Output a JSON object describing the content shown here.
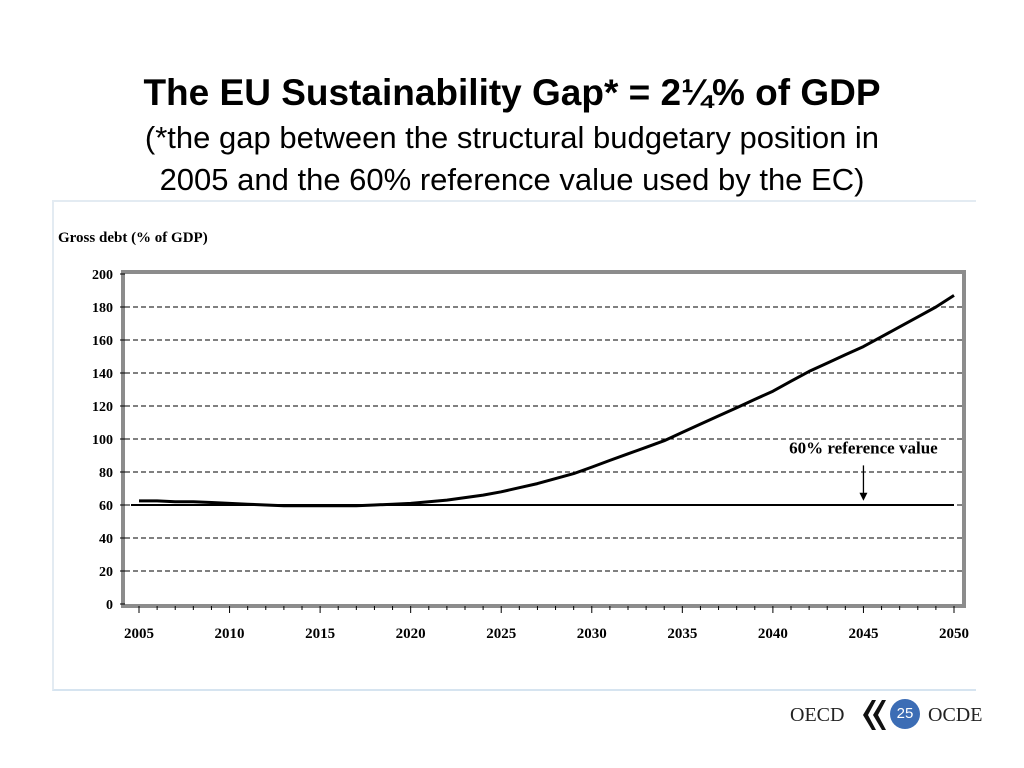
{
  "slide": {
    "title": "The EU Sustainability Gap* = 2¼% of GDP",
    "subtitle_line_1": "(*the gap between the structural budgetary position in",
    "subtitle_line_2": "2005 and the 60% reference value used by the EC)",
    "page_number": "25"
  },
  "footer": {
    "logo_left": "OECD",
    "logo_right": "OCDE",
    "logo_icon": "oecd-chevron-icon"
  },
  "chart_data": {
    "type": "line",
    "title": "",
    "ylabel": "Gross debt (% of GDP)",
    "xlabel": "",
    "xlim": [
      2005,
      2050
    ],
    "ylim": [
      0,
      200
    ],
    "x_ticks": [
      2005,
      2010,
      2015,
      2020,
      2025,
      2030,
      2035,
      2040,
      2045,
      2050
    ],
    "y_ticks": [
      0,
      20,
      40,
      60,
      80,
      100,
      120,
      140,
      160,
      180,
      200
    ],
    "grid": "horizontal dashed",
    "series": [
      {
        "x": [
          2005,
          2006,
          2007,
          2008,
          2009,
          2010,
          2011,
          2012,
          2013,
          2014,
          2015,
          2016,
          2017,
          2018,
          2019,
          2020,
          2021,
          2022,
          2023,
          2024,
          2025,
          2026,
          2027,
          2028,
          2029,
          2030,
          2031,
          2032,
          2033,
          2034,
          2035,
          2036,
          2037,
          2038,
          2039,
          2040,
          2041,
          2042,
          2043,
          2044,
          2045,
          2046,
          2047,
          2048,
          2049,
          2050
        ],
        "y": [
          62.5,
          62.5,
          62,
          62,
          61.5,
          61,
          60.5,
          60,
          59.5,
          59.5,
          59.5,
          59.5,
          59.5,
          60,
          60.5,
          61,
          62,
          63,
          64.5,
          66,
          68,
          70.5,
          73,
          76,
          79,
          83,
          87,
          91,
          95,
          99,
          104,
          109,
          114,
          119,
          124,
          129,
          135,
          141,
          146,
          151,
          156,
          162,
          168,
          174,
          180,
          187
        ],
        "color": "#000000"
      }
    ],
    "reference_line": {
      "y": 60,
      "label": "60% reference value",
      "color": "#000000"
    },
    "annotation_arrow": {
      "x": 2045,
      "y_from": 84,
      "y_to": 62
    }
  }
}
